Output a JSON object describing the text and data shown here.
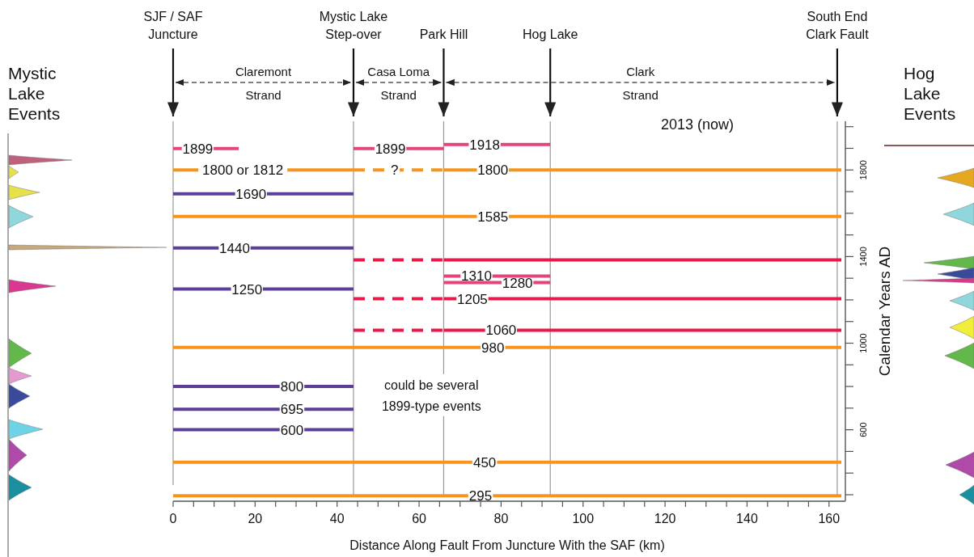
{
  "chart_data": {
    "type": "line",
    "xlabel": "Distance Along Fault From Juncture With the SAF (km)",
    "ylabel": "Calendar Years AD",
    "xlim": [
      0,
      163
    ],
    "ylim": [
      270,
      2025
    ],
    "xticks": [
      0,
      {
        "value": 5,
        "label": null
      },
      {
        "value": 10,
        "label": null
      },
      {
        "value": 15,
        "label": null
      },
      20,
      {
        "value": 25,
        "label": null
      },
      {
        "value": 30,
        "label": null
      },
      {
        "value": 35,
        "label": null
      },
      40,
      {
        "value": 45,
        "label": null
      },
      {
        "value": 50,
        "label": null
      },
      {
        "value": 55,
        "label": null
      },
      60,
      {
        "value": 65,
        "label": null
      },
      {
        "value": 70,
        "label": null
      },
      {
        "value": 75,
        "label": null
      },
      80,
      {
        "value": 85,
        "label": null
      },
      {
        "value": 90,
        "label": null
      },
      {
        "value": 95,
        "label": null
      },
      100,
      {
        "value": 105,
        "label": null
      },
      {
        "value": 110,
        "label": null
      },
      {
        "value": 115,
        "label": null
      },
      120,
      {
        "value": 125,
        "label": null
      },
      {
        "value": 130,
        "label": null
      },
      {
        "value": 135,
        "label": null
      },
      140,
      {
        "value": 145,
        "label": null
      },
      {
        "value": 150,
        "label": null
      },
      {
        "value": 155,
        "label": null
      },
      160
    ],
    "yticks": [
      {
        "value": 300,
        "label": null
      },
      {
        "value": 400,
        "label": null
      },
      {
        "value": 500,
        "label": null
      },
      600,
      {
        "value": 700,
        "label": null
      },
      {
        "value": 800,
        "label": null
      },
      {
        "value": 900,
        "label": null
      },
      1000,
      {
        "value": 1100,
        "label": null
      },
      {
        "value": 1200,
        "label": null
      },
      {
        "value": 1300,
        "label": null
      },
      1400,
      {
        "value": 1500,
        "label": null
      },
      {
        "value": 1600,
        "label": null
      },
      {
        "value": 1700,
        "label": null
      },
      1800,
      {
        "value": 1900,
        "label": null
      },
      {
        "value": 2000,
        "label": null
      }
    ],
    "ref_lines": [
      {
        "axis": "x",
        "value": 0,
        "label": "SJF / SAF\nJuncture",
        "color": "#999999"
      },
      {
        "axis": "x",
        "value": 44,
        "label": "Mystic Lake\nStep-over",
        "color": "#999999"
      },
      {
        "axis": "x",
        "value": 66,
        "label": "Park Hill",
        "color": "#999999"
      },
      {
        "axis": "x",
        "value": 92,
        "label": "Hog Lake",
        "color": "#999999"
      },
      {
        "axis": "x",
        "value": 162,
        "label": "South End\nClark Fault",
        "color": "#999999"
      }
    ],
    "series": [
      {
        "x": [
          0,
          16
        ],
        "values": [
          1899,
          1899
        ],
        "color": "#e0457b"
      },
      {
        "x": [
          44,
          66
        ],
        "values": [
          1899,
          1899
        ],
        "color": "#e0457b"
      },
      {
        "x": [
          66,
          92
        ],
        "values": [
          1918,
          1918
        ],
        "color": "#e0457b"
      },
      {
        "x": [
          0,
          44
        ],
        "values": [
          1800,
          1800
        ],
        "color": "#f7941d"
      },
      {
        "x": [
          44,
          66
        ],
        "values": [
          1800,
          1800
        ],
        "color": "#f7941d",
        "line_style": "dashed"
      },
      {
        "x": [
          66,
          163
        ],
        "values": [
          1800,
          1800
        ],
        "color": "#f7941d"
      },
      {
        "x": [
          0,
          44
        ],
        "values": [
          1690,
          1690
        ],
        "color": "#5b3f99"
      },
      {
        "x": [
          0,
          163
        ],
        "values": [
          1585,
          1585
        ],
        "color": "#f7941d"
      },
      {
        "x": [
          0,
          44
        ],
        "values": [
          1440,
          1440
        ],
        "color": "#5b3f99"
      },
      {
        "x": [
          44,
          66
        ],
        "values": [
          1385,
          1385
        ],
        "color": "#e8194a",
        "line_style": "dashed"
      },
      {
        "x": [
          66,
          163
        ],
        "values": [
          1385,
          1385
        ],
        "color": "#e8194a"
      },
      {
        "x": [
          66,
          92
        ],
        "values": [
          1310,
          1310
        ],
        "color": "#e0457b"
      },
      {
        "x": [
          66,
          92
        ],
        "values": [
          1280,
          1280
        ],
        "color": "#e0457b"
      },
      {
        "x": [
          0,
          44
        ],
        "values": [
          1250,
          1250
        ],
        "color": "#5b3f99"
      },
      {
        "x": [
          44,
          66
        ],
        "values": [
          1205,
          1205
        ],
        "color": "#e8194a",
        "line_style": "dashed"
      },
      {
        "x": [
          66,
          163
        ],
        "values": [
          1205,
          1205
        ],
        "color": "#e8194a"
      },
      {
        "x": [
          44,
          66
        ],
        "values": [
          1060,
          1060
        ],
        "color": "#e8194a",
        "line_style": "dashed"
      },
      {
        "x": [
          66,
          163
        ],
        "values": [
          1060,
          1060
        ],
        "color": "#e8194a"
      },
      {
        "x": [
          0,
          163
        ],
        "values": [
          980,
          980
        ],
        "color": "#f7941d"
      },
      {
        "x": [
          0,
          44
        ],
        "values": [
          800,
          800
        ],
        "color": "#5b3f99"
      },
      {
        "x": [
          0,
          44
        ],
        "values": [
          695,
          695
        ],
        "color": "#5b3f99"
      },
      {
        "x": [
          0,
          44
        ],
        "values": [
          600,
          600
        ],
        "color": "#5b3f99"
      },
      {
        "x": [
          0,
          163
        ],
        "values": [
          450,
          450
        ],
        "color": "#f7941d"
      },
      {
        "x": [
          0,
          163
        ],
        "values": [
          295,
          295
        ],
        "color": "#f7941d"
      }
    ],
    "annotations": [
      "Mystic\nLake\nEvents",
      "Hog\nLake\nEvents",
      {
        "text": "1899",
        "x": 6,
        "y": 1899
      },
      {
        "text": "1899",
        "x": 53,
        "y": 1899
      },
      {
        "text": "1918",
        "x": 76,
        "y": 1918
      },
      {
        "text": "1800 or 1812",
        "x": 17,
        "y": 1800
      },
      {
        "text": "?",
        "x": 54,
        "y": 1800
      },
      {
        "text": "1800",
        "x": 78,
        "y": 1800
      },
      {
        "text": "1690",
        "x": 19,
        "y": 1690
      },
      {
        "text": "1585",
        "x": 78,
        "y": 1585
      },
      {
        "text": "1440",
        "x": 15,
        "y": 1440
      },
      {
        "text": "1310",
        "x": 74,
        "y": 1310
      },
      {
        "text": "1280",
        "x": 84,
        "y": 1280
      },
      {
        "text": "1250",
        "x": 18,
        "y": 1250
      },
      {
        "text": "1205",
        "x": 73,
        "y": 1205
      },
      {
        "text": "1060",
        "x": 80,
        "y": 1060
      },
      {
        "text": "980",
        "x": 78,
        "y": 980
      },
      {
        "text": "800",
        "x": 29,
        "y": 800
      },
      {
        "text": "695",
        "x": 29,
        "y": 695
      },
      {
        "text": "600",
        "x": 29,
        "y": 600
      },
      {
        "text": "450",
        "x": 76,
        "y": 450
      },
      {
        "text": "295",
        "x": 75,
        "y": 295
      },
      "2013 (now)",
      "could be several\n1899-type events",
      "Claremont\nStrand",
      "Casa Loma\nStrand",
      "Clark\nStrand"
    ]
  }
}
